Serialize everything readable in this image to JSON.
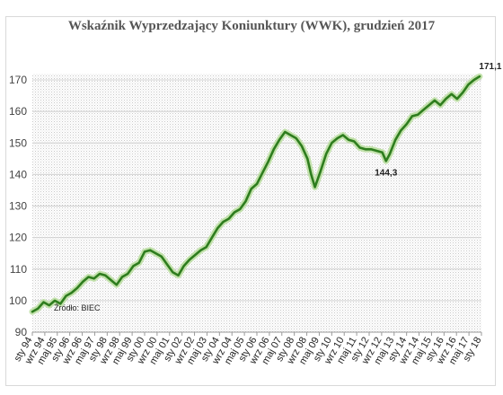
{
  "chart_data": {
    "type": "line",
    "title": "Wskaźnik Wyprzedzający Koniunktury (WWK),  grudzień 2017",
    "xlabel": "",
    "ylabel": "",
    "ylim": [
      90,
      172
    ],
    "yticks": [
      90,
      100,
      110,
      120,
      130,
      140,
      150,
      160,
      170
    ],
    "xlim": [
      1994.0,
      2018.0
    ],
    "xtick_labels": [
      "sty 94",
      "wrz 94",
      "maj 95",
      "sty 96",
      "wrz 96",
      "maj 97",
      "sty 98",
      "wrz 98",
      "maj 99",
      "sty 00",
      "wrz 00",
      "maj 01",
      "sty 02",
      "wrz 02",
      "maj 03",
      "sty 04",
      "wrz 04",
      "maj 05",
      "sty 06",
      "wrz 06",
      "maj 07",
      "sty 08",
      "wrz 08",
      "maj 09",
      "sty 10",
      "wrz 10",
      "maj 11",
      "sty 12",
      "wrz 12",
      "maj 13",
      "sty 14",
      "wrz 14",
      "maj 15",
      "sty 16",
      "wrz 16",
      "maj 17",
      "sty 18"
    ],
    "grid": true,
    "line_color": "#2e7d1e",
    "series": [
      {
        "x": [
          1994.0,
          1994.3,
          1994.6,
          1994.9,
          1995.2,
          1995.5,
          1995.8,
          1996.1,
          1996.4,
          1996.7,
          1997.0,
          1997.3,
          1997.6,
          1997.9,
          1998.2,
          1998.5,
          1998.8,
          1999.1,
          1999.4,
          1999.7,
          2000.0,
          2000.3,
          2000.6,
          2000.9,
          2001.2,
          2001.5,
          2001.8,
          2002.1,
          2002.4,
          2002.7,
          2003.0,
          2003.3,
          2003.6,
          2003.9,
          2004.2,
          2004.5,
          2004.8,
          2005.1,
          2005.4,
          2005.7,
          2006.0,
          2006.3,
          2006.6,
          2006.9,
          2007.2,
          2007.5,
          2007.8,
          2008.1,
          2008.4,
          2008.7,
          2008.9,
          2009.1,
          2009.4,
          2009.7,
          2010.0,
          2010.3,
          2010.6,
          2010.9,
          2011.2,
          2011.5,
          2011.8,
          2012.1,
          2012.4,
          2012.7,
          2012.9,
          2013.1,
          2013.4,
          2013.7,
          2014.0,
          2014.3,
          2014.6,
          2014.9,
          2015.2,
          2015.5,
          2015.8,
          2016.1,
          2016.4,
          2016.7,
          2017.0,
          2017.3,
          2017.6,
          2017.9
        ],
        "y": [
          96.5,
          97.5,
          99.5,
          98.5,
          100.0,
          99.0,
          101.5,
          102.5,
          104.0,
          106.0,
          107.5,
          107.0,
          108.5,
          108.0,
          106.5,
          105.0,
          107.5,
          108.5,
          111.0,
          112.0,
          115.5,
          116.0,
          115.0,
          114.0,
          111.5,
          109.0,
          108.0,
          111.0,
          113.0,
          114.5,
          116.0,
          117.0,
          120.0,
          123.0,
          125.0,
          126.0,
          128.0,
          129.0,
          131.5,
          135.5,
          137.0,
          140.5,
          144.0,
          148.0,
          151.0,
          153.5,
          152.5,
          151.5,
          149.0,
          145.0,
          140.0,
          136.0,
          141.0,
          146.5,
          150.0,
          151.5,
          152.5,
          151.0,
          150.5,
          148.5,
          148.0,
          148.0,
          147.5,
          147.0,
          144.3,
          146.5,
          151.0,
          154.0,
          156.0,
          158.5,
          159.0,
          160.5,
          162.0,
          163.5,
          162.0,
          164.0,
          165.5,
          164.0,
          166.0,
          168.5,
          170.0,
          171.1
        ]
      }
    ],
    "annotations": [
      {
        "label": "144,3",
        "x": 2012.9,
        "y": 144.3
      },
      {
        "label": "171,1",
        "x": 2017.9,
        "y": 171.1
      }
    ],
    "source": "Źródło: BIEC"
  }
}
